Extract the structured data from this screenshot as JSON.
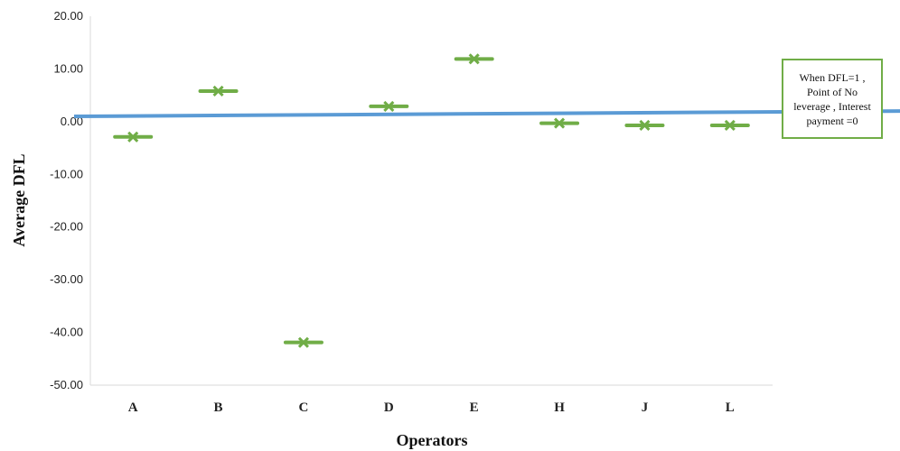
{
  "chart_data": {
    "type": "scatter",
    "categories": [
      "A",
      "B",
      "C",
      "D",
      "E",
      "H",
      "J",
      "L"
    ],
    "values": [
      -2.9,
      5.8,
      -41.9,
      2.9,
      11.9,
      -0.3,
      -0.7,
      -0.7
    ],
    "xlabel": "Operators",
    "ylabel": "Average DFL",
    "ylim": [
      -50,
      20
    ],
    "yticks": [
      "20.00",
      "10.00",
      "0.00",
      "-10.00",
      "-20.00",
      "-30.00",
      "-40.00",
      "-50.00"
    ],
    "reference_line": {
      "start_y": 1.0,
      "end_y": 2.0
    },
    "annotation_lines": [
      "When DFL=1 ,",
      "Point of No",
      "leverage , Interest",
      "payment =0"
    ],
    "grid": false,
    "colors": {
      "marker": "#70ad47",
      "line": "#5b9bd5",
      "axis": "#d9d9d9"
    }
  }
}
